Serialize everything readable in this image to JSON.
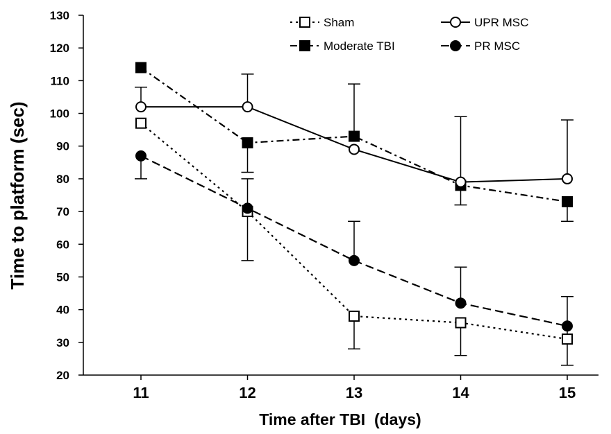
{
  "chart_data": {
    "type": "line",
    "xlabel": "Time after TBI  (days)",
    "ylabel": "Time to platform (sec)",
    "x": [
      11,
      12,
      13,
      14,
      15
    ],
    "x_tick_labels": [
      "11",
      "12",
      "13",
      "14",
      "15"
    ],
    "ylim": [
      20,
      130
    ],
    "y_ticks": [
      20,
      30,
      40,
      50,
      60,
      70,
      80,
      90,
      100,
      110,
      120,
      130
    ],
    "y_tick_labels": [
      "20",
      "30",
      "40",
      "50",
      "60",
      "70",
      "80",
      "90",
      "100",
      "110",
      "120",
      "130"
    ],
    "grid": false,
    "legend_position": "top",
    "series": [
      {
        "name": "Sham",
        "marker": "open-square",
        "line_style": "dotted",
        "values": [
          97,
          70,
          38,
          36,
          31
        ],
        "error_upper": [
          null,
          80,
          null,
          null,
          44
        ],
        "error_lower": [
          null,
          55,
          28,
          26,
          23
        ]
      },
      {
        "name": "Moderate TBI",
        "marker": "filled-square",
        "line_style": "dash-dot",
        "values": [
          114,
          91,
          93,
          78,
          73
        ],
        "error_upper": [
          null,
          null,
          109,
          null,
          null
        ],
        "error_lower": [
          null,
          82,
          null,
          72,
          67
        ]
      },
      {
        "name": "UPR MSC",
        "marker": "open-circle",
        "line_style": "solid",
        "values": [
          102,
          102,
          89,
          79,
          80
        ],
        "error_upper": [
          108,
          112,
          null,
          99,
          98
        ],
        "error_lower": [
          null,
          null,
          null,
          null,
          null
        ]
      },
      {
        "name": "PR MSC",
        "marker": "filled-circle",
        "line_style": "dashed",
        "values": [
          87,
          71,
          55,
          42,
          35
        ],
        "error_upper": [
          null,
          null,
          67,
          53,
          null
        ],
        "error_lower": [
          80,
          null,
          null,
          null,
          null
        ]
      }
    ],
    "colors": {
      "line": "#000000",
      "background": "#ffffff"
    }
  }
}
